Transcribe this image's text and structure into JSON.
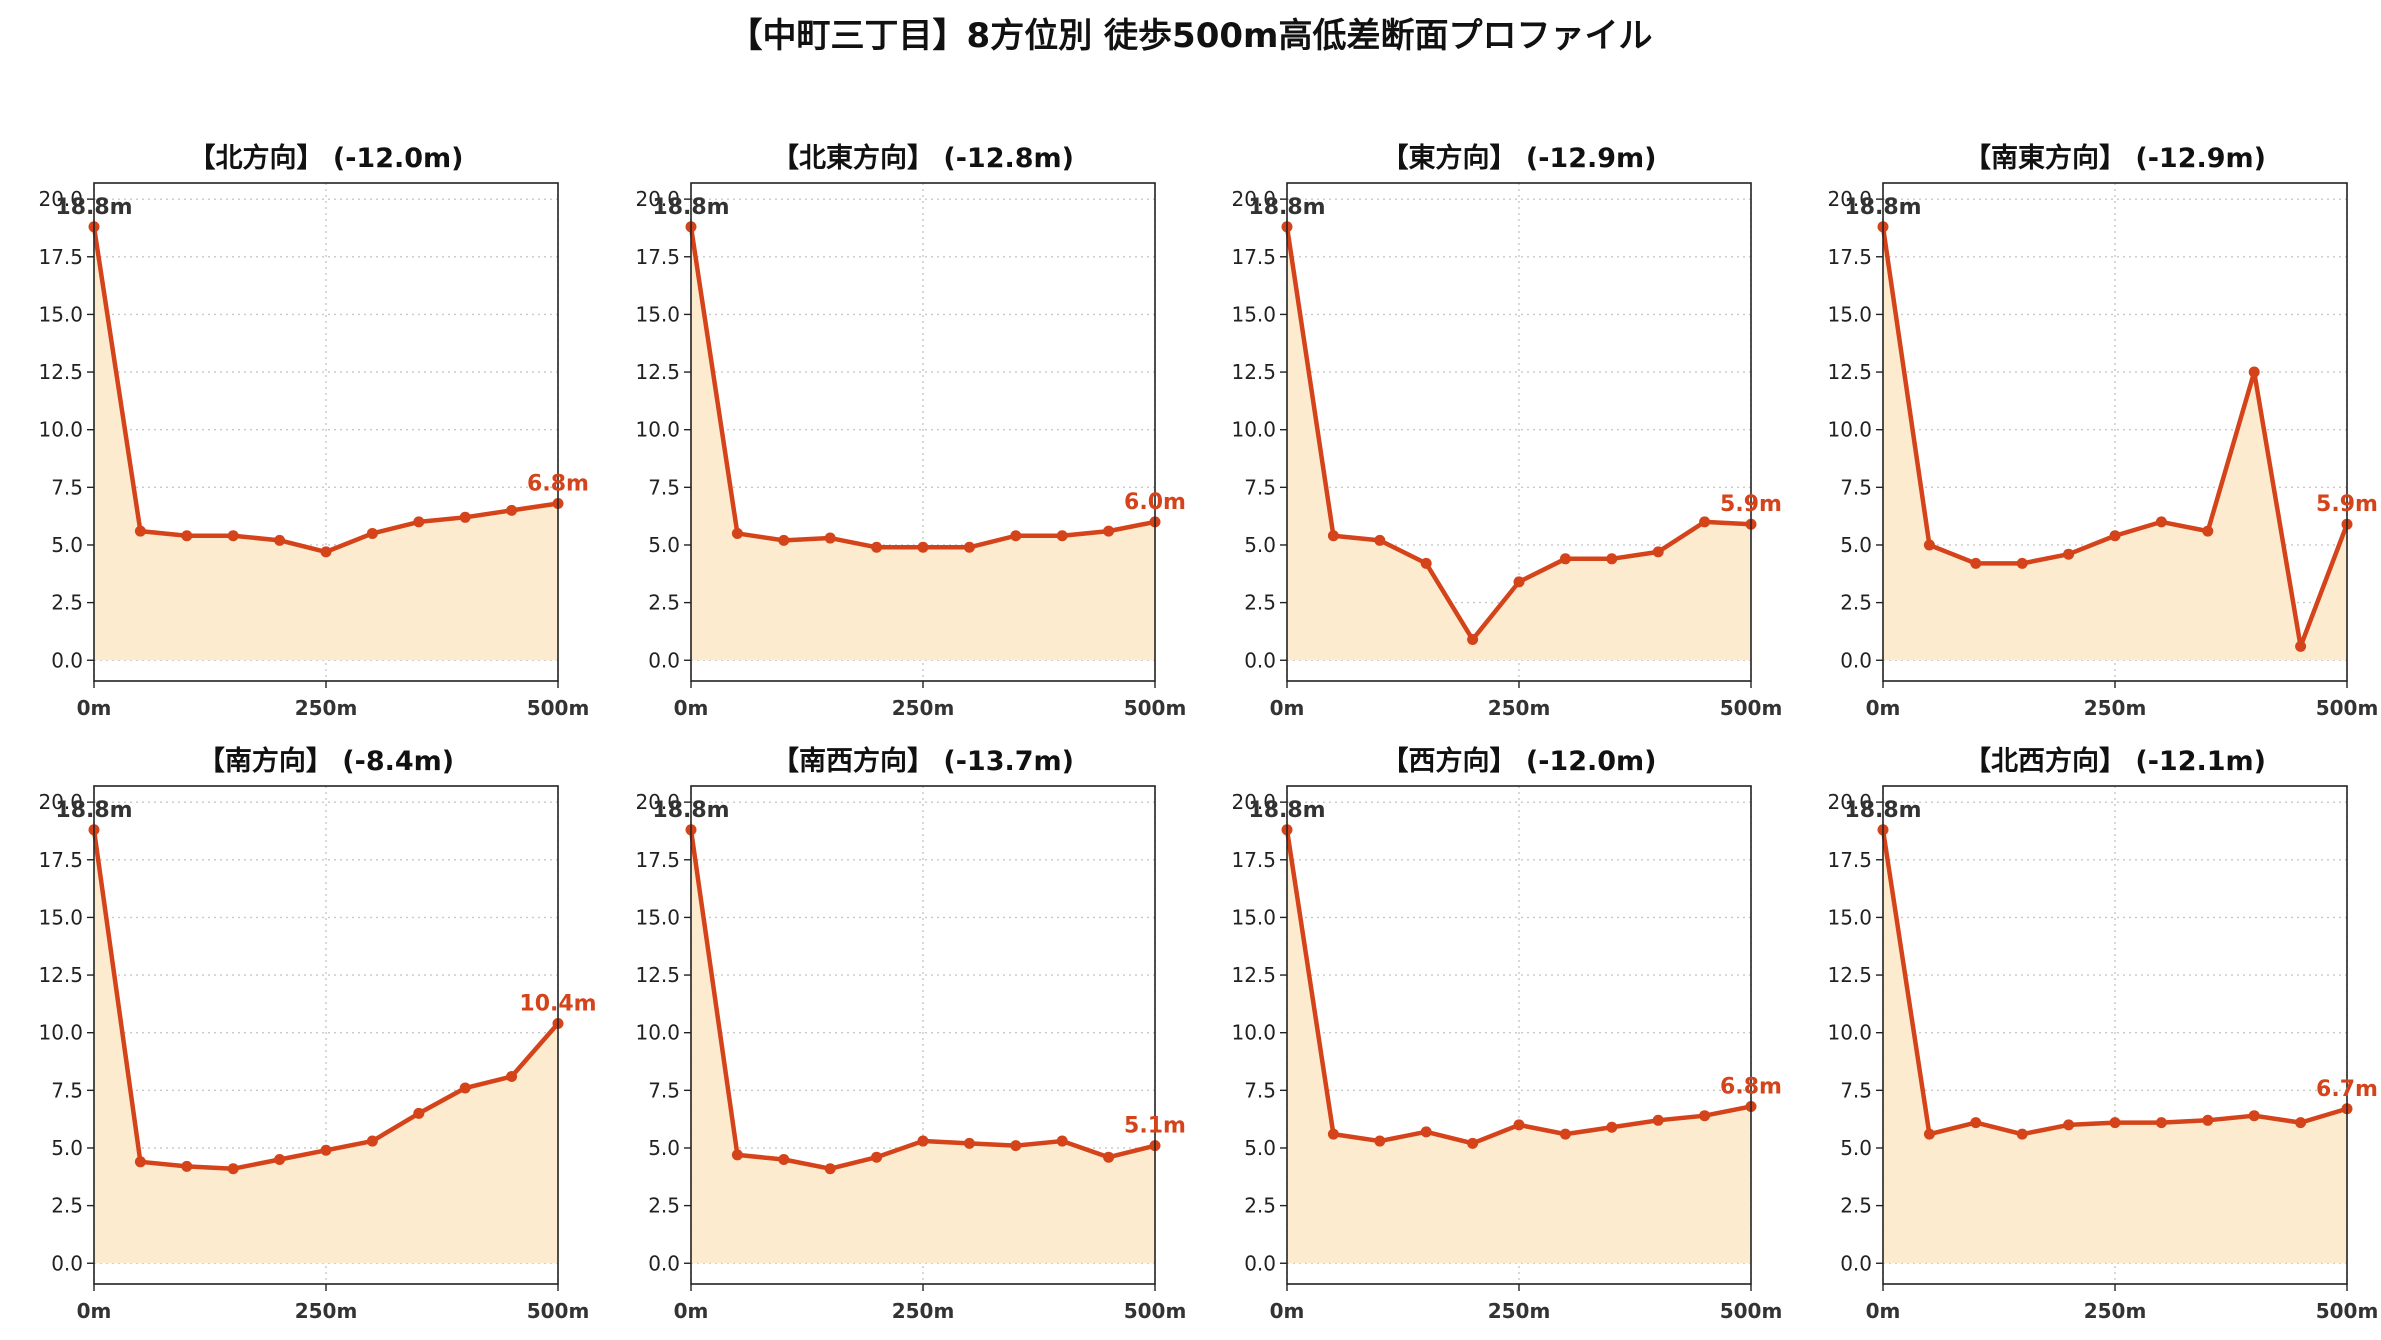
{
  "title": "【中町三丁目】8方位別 徒歩500m高低差断面プロファイル",
  "colors": {
    "line": "#d4431a",
    "fill": "#fdebcf",
    "grid": "#c8c8c8",
    "axis": "#222222",
    "start_label": "#333333",
    "end_label": "#d4431a"
  },
  "chart_data": [
    {
      "type": "area",
      "title": "【北方向】 (-12.0m)",
      "x": [
        0,
        50,
        100,
        150,
        200,
        250,
        300,
        350,
        400,
        450,
        500
      ],
      "y": [
        18.8,
        5.6,
        5.4,
        5.4,
        5.2,
        4.7,
        5.5,
        6.0,
        6.2,
        6.5,
        6.8
      ],
      "start_label": "18.8m",
      "end_label": "6.8m",
      "xticks": [
        "0m",
        "250m",
        "500m"
      ],
      "yticks": [
        "0.0",
        "2.5",
        "5.0",
        "7.5",
        "10.0",
        "12.5",
        "15.0",
        "17.5",
        "20.0"
      ],
      "xlim": [
        0,
        500
      ],
      "ylim": [
        -0.9,
        20.7
      ],
      "grid": true
    },
    {
      "type": "area",
      "title": "【北東方向】 (-12.8m)",
      "x": [
        0,
        50,
        100,
        150,
        200,
        250,
        300,
        350,
        400,
        450,
        500
      ],
      "y": [
        18.8,
        5.5,
        5.2,
        5.3,
        4.9,
        4.9,
        4.9,
        5.4,
        5.4,
        5.6,
        6.0
      ],
      "start_label": "18.8m",
      "end_label": "6.0m",
      "xticks": [
        "0m",
        "250m",
        "500m"
      ],
      "yticks": [
        "0.0",
        "2.5",
        "5.0",
        "7.5",
        "10.0",
        "12.5",
        "15.0",
        "17.5",
        "20.0"
      ],
      "xlim": [
        0,
        500
      ],
      "ylim": [
        -0.9,
        20.7
      ],
      "grid": true
    },
    {
      "type": "area",
      "title": "【東方向】 (-12.9m)",
      "x": [
        0,
        50,
        100,
        150,
        200,
        250,
        300,
        350,
        400,
        450,
        500
      ],
      "y": [
        18.8,
        5.4,
        5.2,
        4.2,
        0.9,
        3.4,
        4.4,
        4.4,
        4.7,
        6.0,
        5.9
      ],
      "start_label": "18.8m",
      "end_label": "5.9m",
      "xticks": [
        "0m",
        "250m",
        "500m"
      ],
      "yticks": [
        "0.0",
        "2.5",
        "5.0",
        "7.5",
        "10.0",
        "12.5",
        "15.0",
        "17.5",
        "20.0"
      ],
      "xlim": [
        0,
        500
      ],
      "ylim": [
        -0.9,
        20.7
      ],
      "grid": true
    },
    {
      "type": "area",
      "title": "【南東方向】 (-12.9m)",
      "x": [
        0,
        50,
        100,
        150,
        200,
        250,
        300,
        350,
        400,
        450,
        500
      ],
      "y": [
        18.8,
        5.0,
        4.2,
        4.2,
        4.6,
        5.4,
        6.0,
        5.6,
        12.5,
        0.6,
        5.9
      ],
      "start_label": "18.8m",
      "end_label": "5.9m",
      "xticks": [
        "0m",
        "250m",
        "500m"
      ],
      "yticks": [
        "0.0",
        "2.5",
        "5.0",
        "7.5",
        "10.0",
        "12.5",
        "15.0",
        "17.5",
        "20.0"
      ],
      "xlim": [
        0,
        500
      ],
      "ylim": [
        -0.9,
        20.7
      ],
      "grid": true
    },
    {
      "type": "area",
      "title": "【南方向】 (-8.4m)",
      "x": [
        0,
        50,
        100,
        150,
        200,
        250,
        300,
        350,
        400,
        450,
        500
      ],
      "y": [
        18.8,
        4.4,
        4.2,
        4.1,
        4.5,
        4.9,
        5.3,
        6.5,
        7.6,
        8.1,
        10.4
      ],
      "start_label": "18.8m",
      "end_label": "10.4m",
      "xticks": [
        "0m",
        "250m",
        "500m"
      ],
      "yticks": [
        "0.0",
        "2.5",
        "5.0",
        "7.5",
        "10.0",
        "12.5",
        "15.0",
        "17.5",
        "20.0"
      ],
      "xlim": [
        0,
        500
      ],
      "ylim": [
        -0.9,
        20.7
      ],
      "grid": true
    },
    {
      "type": "area",
      "title": "【南西方向】 (-13.7m)",
      "x": [
        0,
        50,
        100,
        150,
        200,
        250,
        300,
        350,
        400,
        450,
        500
      ],
      "y": [
        18.8,
        4.7,
        4.5,
        4.1,
        4.6,
        5.3,
        5.2,
        5.1,
        5.3,
        4.6,
        5.1
      ],
      "start_label": "18.8m",
      "end_label": "5.1m",
      "xticks": [
        "0m",
        "250m",
        "500m"
      ],
      "yticks": [
        "0.0",
        "2.5",
        "5.0",
        "7.5",
        "10.0",
        "12.5",
        "15.0",
        "17.5",
        "20.0"
      ],
      "xlim": [
        0,
        500
      ],
      "ylim": [
        -0.9,
        20.7
      ],
      "grid": true
    },
    {
      "type": "area",
      "title": "【西方向】 (-12.0m)",
      "x": [
        0,
        50,
        100,
        150,
        200,
        250,
        300,
        350,
        400,
        450,
        500
      ],
      "y": [
        18.8,
        5.6,
        5.3,
        5.7,
        5.2,
        6.0,
        5.6,
        5.9,
        6.2,
        6.4,
        6.8
      ],
      "start_label": "18.8m",
      "end_label": "6.8m",
      "xticks": [
        "0m",
        "250m",
        "500m"
      ],
      "yticks": [
        "0.0",
        "2.5",
        "5.0",
        "7.5",
        "10.0",
        "12.5",
        "15.0",
        "17.5",
        "20.0"
      ],
      "xlim": [
        0,
        500
      ],
      "ylim": [
        -0.9,
        20.7
      ],
      "grid": true
    },
    {
      "type": "area",
      "title": "【北西方向】 (-12.1m)",
      "x": [
        0,
        50,
        100,
        150,
        200,
        250,
        300,
        350,
        400,
        450,
        500
      ],
      "y": [
        18.8,
        5.6,
        6.1,
        5.6,
        6.0,
        6.1,
        6.1,
        6.2,
        6.4,
        6.1,
        6.7
      ],
      "start_label": "18.8m",
      "end_label": "6.7m",
      "xticks": [
        "0m",
        "250m",
        "500m"
      ],
      "yticks": [
        "0.0",
        "2.5",
        "5.0",
        "7.5",
        "10.0",
        "12.5",
        "15.0",
        "17.5",
        "20.0"
      ],
      "xlim": [
        0,
        500
      ],
      "ylim": [
        -0.9,
        20.7
      ],
      "grid": true
    }
  ]
}
